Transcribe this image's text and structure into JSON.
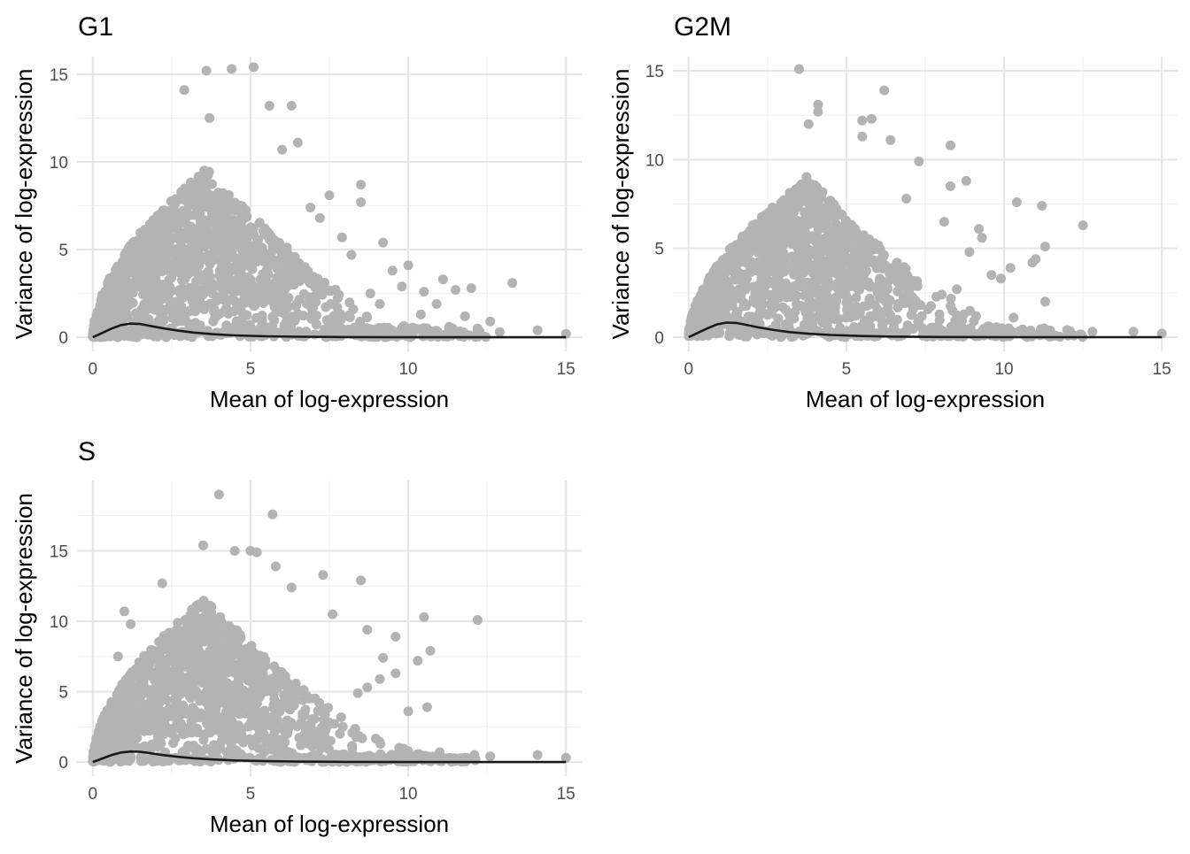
{
  "chart_data": [
    {
      "type": "scatter",
      "title": "G1",
      "xlabel": "Mean of log-expression",
      "ylabel": "Variance of log-expression",
      "xlim": [
        -0.5,
        15.5
      ],
      "ylim": [
        -0.8,
        16.0
      ],
      "xticks": [
        0,
        5,
        10,
        15
      ],
      "yticks": [
        0,
        5,
        10,
        15
      ],
      "point_color": "#b3b3b3",
      "line_color": "#1a1a1a",
      "grid": true,
      "bulk": {
        "peak_x": 3.5,
        "peak_y": 9.5,
        "spread": 1.0
      },
      "outliers": [
        {
          "x": 2.9,
          "y": 14.1
        },
        {
          "x": 3.6,
          "y": 15.2
        },
        {
          "x": 4.4,
          "y": 15.3
        },
        {
          "x": 5.1,
          "y": 15.4
        },
        {
          "x": 5.6,
          "y": 13.2
        },
        {
          "x": 6.3,
          "y": 13.2
        },
        {
          "x": 3.7,
          "y": 12.5
        },
        {
          "x": 6.5,
          "y": 11.1
        },
        {
          "x": 6.0,
          "y": 10.7
        },
        {
          "x": 7.5,
          "y": 8.1
        },
        {
          "x": 8.5,
          "y": 8.7
        },
        {
          "x": 8.5,
          "y": 7.7
        },
        {
          "x": 7.9,
          "y": 5.7
        },
        {
          "x": 9.2,
          "y": 5.4
        },
        {
          "x": 10.0,
          "y": 4.1
        },
        {
          "x": 11.1,
          "y": 3.3
        },
        {
          "x": 12.0,
          "y": 2.8
        },
        {
          "x": 11.5,
          "y": 2.7
        },
        {
          "x": 13.3,
          "y": 3.1
        },
        {
          "x": 9.5,
          "y": 3.8
        },
        {
          "x": 10.5,
          "y": 2.6
        },
        {
          "x": 9.8,
          "y": 2.9
        },
        {
          "x": 10.9,
          "y": 1.9
        },
        {
          "x": 11.8,
          "y": 1.2
        },
        {
          "x": 12.6,
          "y": 0.9
        },
        {
          "x": 12.2,
          "y": 0.5
        },
        {
          "x": 14.1,
          "y": 0.4
        },
        {
          "x": 15.0,
          "y": 0.2
        },
        {
          "x": 12.9,
          "y": 0.3
        },
        {
          "x": 11.3,
          "y": 0.6
        },
        {
          "x": 10.4,
          "y": 1.3
        },
        {
          "x": 9.1,
          "y": 1.9
        },
        {
          "x": 8.2,
          "y": 4.7
        },
        {
          "x": 8.8,
          "y": 2.5
        },
        {
          "x": 7.2,
          "y": 6.8
        },
        {
          "x": 6.9,
          "y": 7.4
        }
      ],
      "trend": [
        {
          "x": 0,
          "y": 0.0
        },
        {
          "x": 0.3,
          "y": 0.25
        },
        {
          "x": 0.6,
          "y": 0.5
        },
        {
          "x": 0.9,
          "y": 0.7
        },
        {
          "x": 1.2,
          "y": 0.78
        },
        {
          "x": 1.5,
          "y": 0.76
        },
        {
          "x": 1.8,
          "y": 0.66
        },
        {
          "x": 2.2,
          "y": 0.52
        },
        {
          "x": 2.7,
          "y": 0.38
        },
        {
          "x": 3.2,
          "y": 0.27
        },
        {
          "x": 3.8,
          "y": 0.18
        },
        {
          "x": 4.5,
          "y": 0.11
        },
        {
          "x": 5.5,
          "y": 0.06
        },
        {
          "x": 6.5,
          "y": 0.03
        },
        {
          "x": 8,
          "y": 0.01
        },
        {
          "x": 10,
          "y": 0.0
        },
        {
          "x": 15,
          "y": 0.0
        }
      ]
    },
    {
      "type": "scatter",
      "title": "G2M",
      "xlabel": "Mean of log-expression",
      "ylabel": "Variance of log-expression",
      "xlim": [
        -0.5,
        15.5
      ],
      "ylim": [
        -0.8,
        15.8
      ],
      "xticks": [
        0,
        5,
        10,
        15
      ],
      "yticks": [
        0,
        5,
        10,
        15
      ],
      "point_color": "#b3b3b3",
      "line_color": "#1a1a1a",
      "grid": true,
      "bulk": {
        "peak_x": 3.7,
        "peak_y": 8.8,
        "spread": 1.0
      },
      "outliers": [
        {
          "x": 3.5,
          "y": 15.1
        },
        {
          "x": 6.2,
          "y": 13.9
        },
        {
          "x": 4.1,
          "y": 13.1
        },
        {
          "x": 4.1,
          "y": 12.7
        },
        {
          "x": 5.5,
          "y": 12.2
        },
        {
          "x": 5.8,
          "y": 12.3
        },
        {
          "x": 3.8,
          "y": 12.0
        },
        {
          "x": 5.5,
          "y": 11.3
        },
        {
          "x": 6.4,
          "y": 11.1
        },
        {
          "x": 7.3,
          "y": 9.9
        },
        {
          "x": 8.3,
          "y": 10.8
        },
        {
          "x": 8.3,
          "y": 8.5
        },
        {
          "x": 8.8,
          "y": 8.8
        },
        {
          "x": 6.9,
          "y": 7.8
        },
        {
          "x": 8.1,
          "y": 6.5
        },
        {
          "x": 10.4,
          "y": 7.6
        },
        {
          "x": 11.2,
          "y": 7.4
        },
        {
          "x": 12.5,
          "y": 6.3
        },
        {
          "x": 11.3,
          "y": 5.1
        },
        {
          "x": 9.2,
          "y": 6.1
        },
        {
          "x": 10.2,
          "y": 3.9
        },
        {
          "x": 10.9,
          "y": 4.2
        },
        {
          "x": 11.0,
          "y": 4.4
        },
        {
          "x": 9.3,
          "y": 5.6
        },
        {
          "x": 9.6,
          "y": 3.5
        },
        {
          "x": 11.3,
          "y": 2.0
        },
        {
          "x": 10.3,
          "y": 1.1
        },
        {
          "x": 12.0,
          "y": 0.4
        },
        {
          "x": 12.8,
          "y": 0.3
        },
        {
          "x": 14.1,
          "y": 0.3
        },
        {
          "x": 15.0,
          "y": 0.2
        },
        {
          "x": 8.5,
          "y": 2.7
        },
        {
          "x": 9.9,
          "y": 3.3
        },
        {
          "x": 8.9,
          "y": 4.8
        }
      ],
      "trend": [
        {
          "x": 0,
          "y": 0.0
        },
        {
          "x": 0.3,
          "y": 0.25
        },
        {
          "x": 0.6,
          "y": 0.5
        },
        {
          "x": 0.9,
          "y": 0.72
        },
        {
          "x": 1.2,
          "y": 0.82
        },
        {
          "x": 1.5,
          "y": 0.8
        },
        {
          "x": 1.8,
          "y": 0.7
        },
        {
          "x": 2.2,
          "y": 0.55
        },
        {
          "x": 2.7,
          "y": 0.4
        },
        {
          "x": 3.2,
          "y": 0.28
        },
        {
          "x": 3.8,
          "y": 0.19
        },
        {
          "x": 4.5,
          "y": 0.12
        },
        {
          "x": 5.5,
          "y": 0.06
        },
        {
          "x": 6.5,
          "y": 0.03
        },
        {
          "x": 8,
          "y": 0.01
        },
        {
          "x": 10,
          "y": 0.0
        },
        {
          "x": 15,
          "y": 0.0
        }
      ]
    },
    {
      "type": "scatter",
      "title": "S",
      "xlabel": "Mean of log-expression",
      "ylabel": "Variance of log-expression",
      "xlim": [
        -0.5,
        15.5
      ],
      "ylim": [
        -1.0,
        20.0
      ],
      "xticks": [
        0,
        5,
        10,
        15
      ],
      "yticks": [
        0,
        5,
        10,
        15
      ],
      "point_color": "#b3b3b3",
      "line_color": "#1a1a1a",
      "grid": true,
      "bulk": {
        "peak_x": 3.5,
        "peak_y": 11.5,
        "spread": 1.0
      },
      "outliers": [
        {
          "x": 4.0,
          "y": 19.0
        },
        {
          "x": 5.7,
          "y": 17.6
        },
        {
          "x": 3.5,
          "y": 15.4
        },
        {
          "x": 4.5,
          "y": 15.0
        },
        {
          "x": 5.0,
          "y": 15.0
        },
        {
          "x": 5.2,
          "y": 14.9
        },
        {
          "x": 5.8,
          "y": 13.9
        },
        {
          "x": 7.3,
          "y": 13.3
        },
        {
          "x": 8.5,
          "y": 12.9
        },
        {
          "x": 6.3,
          "y": 12.4
        },
        {
          "x": 2.2,
          "y": 12.7
        },
        {
          "x": 1.0,
          "y": 10.7
        },
        {
          "x": 7.6,
          "y": 10.5
        },
        {
          "x": 10.5,
          "y": 10.3
        },
        {
          "x": 12.2,
          "y": 10.1
        },
        {
          "x": 8.7,
          "y": 9.4
        },
        {
          "x": 9.6,
          "y": 8.9
        },
        {
          "x": 10.7,
          "y": 7.9
        },
        {
          "x": 10.3,
          "y": 7.2
        },
        {
          "x": 9.2,
          "y": 7.4
        },
        {
          "x": 9.6,
          "y": 6.3
        },
        {
          "x": 8.7,
          "y": 5.3
        },
        {
          "x": 10.6,
          "y": 3.9
        },
        {
          "x": 10.0,
          "y": 3.6
        },
        {
          "x": 8.4,
          "y": 4.9
        },
        {
          "x": 9.1,
          "y": 5.9
        },
        {
          "x": 11.0,
          "y": 0.7
        },
        {
          "x": 12.1,
          "y": 0.5
        },
        {
          "x": 12.6,
          "y": 0.4
        },
        {
          "x": 14.1,
          "y": 0.5
        },
        {
          "x": 15.0,
          "y": 0.3
        },
        {
          "x": 1.2,
          "y": 9.8
        },
        {
          "x": 0.8,
          "y": 7.5
        }
      ],
      "trend": [
        {
          "x": 0,
          "y": 0.0
        },
        {
          "x": 0.3,
          "y": 0.25
        },
        {
          "x": 0.6,
          "y": 0.5
        },
        {
          "x": 0.9,
          "y": 0.68
        },
        {
          "x": 1.2,
          "y": 0.75
        },
        {
          "x": 1.5,
          "y": 0.73
        },
        {
          "x": 1.8,
          "y": 0.64
        },
        {
          "x": 2.2,
          "y": 0.5
        },
        {
          "x": 2.7,
          "y": 0.37
        },
        {
          "x": 3.2,
          "y": 0.27
        },
        {
          "x": 3.8,
          "y": 0.18
        },
        {
          "x": 4.5,
          "y": 0.11
        },
        {
          "x": 5.5,
          "y": 0.06
        },
        {
          "x": 6.5,
          "y": 0.03
        },
        {
          "x": 8,
          "y": 0.01
        },
        {
          "x": 10,
          "y": 0.0
        },
        {
          "x": 15,
          "y": 0.0
        }
      ]
    }
  ]
}
